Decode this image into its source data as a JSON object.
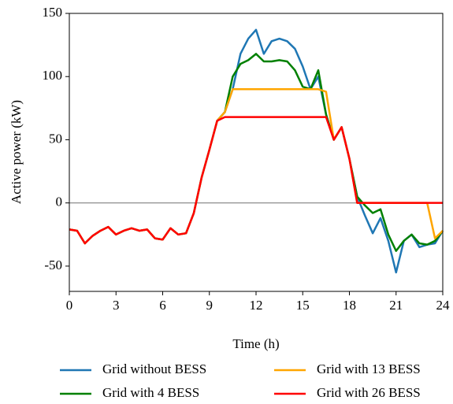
{
  "chart_data": {
    "type": "line",
    "xlabel": "Time (h)",
    "ylabel": "Active power (kW)",
    "xlim": [
      0,
      24
    ],
    "ylim": [
      -70,
      150
    ],
    "xticks": [
      0,
      3,
      6,
      9,
      12,
      15,
      18,
      21,
      24
    ],
    "yticks": [
      -50,
      0,
      50,
      100,
      150
    ],
    "hline": 0,
    "hline_color": "#808080",
    "legend": "bottom",
    "x": [
      0,
      0.5,
      1,
      1.5,
      2,
      2.5,
      3,
      3.5,
      4,
      4.5,
      5,
      5.5,
      6,
      6.5,
      7,
      7.5,
      8,
      8.5,
      9,
      9.5,
      10,
      10.5,
      11,
      11.5,
      12,
      12.5,
      13,
      13.5,
      14,
      14.5,
      15,
      15.5,
      16,
      16.5,
      17,
      17.5,
      18,
      18.5,
      19,
      19.5,
      20,
      20.5,
      21,
      21.5,
      22,
      22.5,
      23,
      23.5,
      24
    ],
    "series": [
      {
        "name": "Grid without BESS",
        "color": "#1f77b4",
        "values": [
          -21,
          -22,
          -32,
          -26,
          -22,
          -19,
          -25,
          -22,
          -20,
          -22,
          -21,
          -28,
          -29,
          -20,
          -25,
          -24,
          -8,
          20,
          42,
          65,
          72,
          90,
          118,
          130,
          137,
          118,
          128,
          130,
          128,
          122,
          108,
          90,
          100,
          70,
          50,
          60,
          35,
          5,
          -10,
          -24,
          -12,
          -30,
          -55,
          -30,
          -25,
          -35,
          -33,
          -32,
          -22
        ]
      },
      {
        "name": "Grid with 4 BESS",
        "color": "#008000",
        "values": [
          -21,
          -22,
          -32,
          -26,
          -22,
          -19,
          -25,
          -22,
          -20,
          -22,
          -21,
          -28,
          -29,
          -20,
          -25,
          -24,
          -8,
          20,
          42,
          65,
          72,
          100,
          110,
          113,
          118,
          112,
          112,
          113,
          112,
          105,
          92,
          90,
          105,
          70,
          50,
          60,
          35,
          5,
          -2,
          -8,
          -5,
          -25,
          -38,
          -30,
          -25,
          -32,
          -33,
          -30,
          -22
        ]
      },
      {
        "name": "Grid with 13 BESS",
        "color": "#ffa500",
        "values": [
          -21,
          -22,
          -32,
          -26,
          -22,
          -19,
          -25,
          -22,
          -20,
          -22,
          -21,
          -28,
          -29,
          -20,
          -25,
          -24,
          -8,
          20,
          42,
          65,
          72,
          90,
          90,
          90,
          90,
          90,
          90,
          90,
          90,
          90,
          90,
          90,
          90,
          88,
          50,
          60,
          35,
          0,
          0,
          0,
          0,
          0,
          0,
          0,
          0,
          0,
          0,
          -28,
          -22
        ]
      },
      {
        "name": "Grid with 26 BESS",
        "color": "#ff0000",
        "values": [
          -21,
          -22,
          -32,
          -26,
          -22,
          -19,
          -25,
          -22,
          -20,
          -22,
          -21,
          -28,
          -29,
          -20,
          -25,
          -24,
          -8,
          20,
          42,
          65,
          68,
          68,
          68,
          68,
          68,
          68,
          68,
          68,
          68,
          68,
          68,
          68,
          68,
          68,
          50,
          60,
          35,
          0,
          0,
          0,
          0,
          0,
          0,
          0,
          0,
          0,
          0,
          0,
          0
        ]
      }
    ]
  }
}
